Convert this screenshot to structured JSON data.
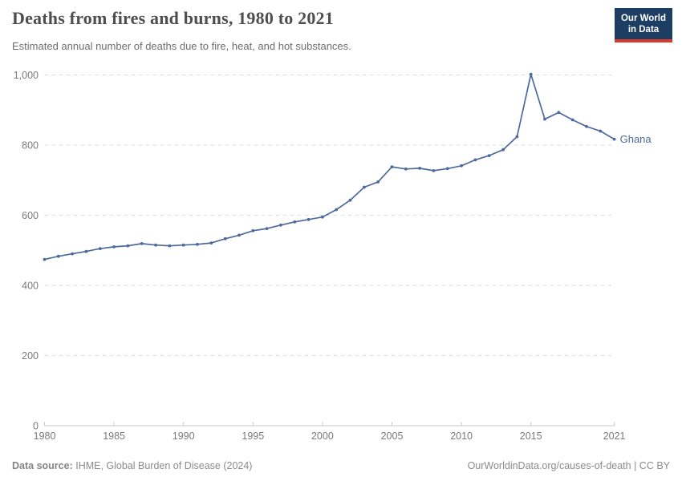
{
  "header": {
    "title": "Deaths from fires and burns, 1980 to 2021",
    "subtitle": "Estimated annual number of deaths due to fire, heat, and hot substances.",
    "logo": {
      "line1": "Our World",
      "line2": "in Data",
      "bg_color": "#1d3d63",
      "bar_color": "#d93a2b"
    }
  },
  "chart_data": {
    "type": "line",
    "title": "Deaths from fires and burns, 1980 to 2021",
    "subtitle": "Estimated annual number of deaths due to fire, heat, and hot substances.",
    "xlabel": "",
    "ylabel": "",
    "xlim": [
      1980,
      2021
    ],
    "ylim": [
      0,
      1000
    ],
    "grid": "horizontal-dashed",
    "legend_position": "end-of-line",
    "x_ticks": [
      1980,
      1985,
      1990,
      1995,
      2000,
      2005,
      2010,
      2015,
      2021
    ],
    "x_tick_labels": [
      "1980",
      "1985",
      "1990",
      "1995",
      "2000",
      "2005",
      "2010",
      "2015",
      "2021"
    ],
    "y_ticks": [
      0,
      200,
      400,
      600,
      800,
      1000
    ],
    "y_tick_labels": [
      "0",
      "200",
      "400",
      "600",
      "800",
      "1,000"
    ],
    "series": [
      {
        "name": "Ghana",
        "color": "#4C6A9C",
        "x": [
          1980,
          1981,
          1982,
          1983,
          1984,
          1985,
          1986,
          1987,
          1988,
          1989,
          1990,
          1991,
          1992,
          1993,
          1994,
          1995,
          1996,
          1997,
          1998,
          1999,
          2000,
          2001,
          2002,
          2003,
          2004,
          2005,
          2006,
          2007,
          2008,
          2009,
          2010,
          2011,
          2012,
          2013,
          2014,
          2015,
          2016,
          2017,
          2018,
          2019,
          2020,
          2021
        ],
        "values": [
          474,
          483,
          490,
          497,
          505,
          510,
          513,
          519,
          515,
          513,
          515,
          517,
          521,
          533,
          543,
          556,
          562,
          572,
          581,
          588,
          595,
          616,
          643,
          680,
          695,
          738,
          732,
          734,
          727,
          733,
          741,
          758,
          770,
          787,
          824,
          1002,
          874,
          893,
          872,
          853,
          840,
          817
        ]
      }
    ],
    "end_label": "Ghana",
    "colors": {
      "line": "#4C6A9C",
      "gridline": "#dedede",
      "axis": "#c8c8c8",
      "tick_label": "#7a7a7a"
    }
  },
  "footer": {
    "datasource_label": "Data source:",
    "datasource_value": "IHME, Global Burden of Disease (2024)",
    "link": "OurWorldinData.org/causes-of-death | CC BY"
  }
}
